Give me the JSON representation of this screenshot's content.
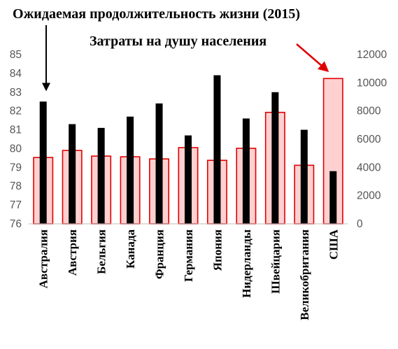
{
  "chart_data": {
    "type": "bar",
    "title": "",
    "categories": [
      "Австралия",
      "Австрия",
      "Бельгия",
      "Канада",
      "Франция",
      "Германия",
      "Япония",
      "Нидерланды",
      "Швейцария",
      "Великобритания",
      "США"
    ],
    "series": [
      {
        "name": "Ожидаемая продолжительность жизни (2015)",
        "axis": "left",
        "color": "#000000",
        "values": [
          82.5,
          81.3,
          81.1,
          81.7,
          82.4,
          80.7,
          83.9,
          81.6,
          83.0,
          81.0,
          78.8
        ]
      },
      {
        "name": "Затраты на душу населения",
        "axis": "right",
        "color": "#ffd0d0",
        "edge_color": "#e00000",
        "values": [
          4700,
          5200,
          4800,
          4750,
          4600,
          5400,
          4500,
          5350,
          7900,
          4150,
          10300
        ]
      }
    ],
    "y_left": {
      "min": 76,
      "max": 85,
      "ticks": [
        "76",
        "77",
        "78",
        "79",
        "80",
        "81",
        "82",
        "83",
        "84",
        "85"
      ]
    },
    "y_right": {
      "min": 0,
      "max": 12000,
      "ticks": [
        "0",
        "2000",
        "4000",
        "6000",
        "8000",
        "10000",
        "12000"
      ]
    },
    "grid": false,
    "annotations": [
      {
        "text": "Ожидаемая продолжительность жизни (2015)",
        "points_to": "Австралия",
        "arrow_color": "#000000"
      },
      {
        "text": "Затраты на душу населения",
        "points_to": "США",
        "arrow_color": "#e00000"
      }
    ]
  }
}
